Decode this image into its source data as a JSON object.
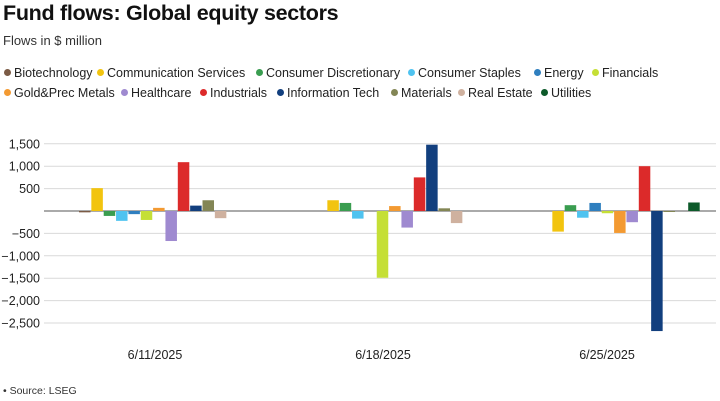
{
  "title": "Fund flows: Global equity sectors",
  "subtitle": "Flows in $ million",
  "source": "• Source: LSEG",
  "chart_data": {
    "type": "bar",
    "categories": [
      "6/11/2025",
      "6/18/2025",
      "6/25/2025"
    ],
    "ylim": [
      -2750,
      1550
    ],
    "yticks": [
      1500,
      1000,
      500,
      -500,
      -1000,
      -1500,
      -2000,
      -2500
    ],
    "ytick_labels": [
      "1,500",
      "1,000",
      "500",
      "−500",
      "−1,000",
      "−1,500",
      "−2,000",
      "−2,500"
    ],
    "grid": true,
    "legend_position": "top",
    "series": [
      {
        "name": "Biotechnology",
        "color": "#7b5b45",
        "values": [
          -30,
          0,
          0
        ]
      },
      {
        "name": "Communication Services",
        "color": "#f2c40f",
        "values": [
          510,
          240,
          -460
        ]
      },
      {
        "name": "Consumer Discretionary",
        "color": "#3a9d50",
        "values": [
          -110,
          180,
          130
        ]
      },
      {
        "name": "Consumer Staples",
        "color": "#4fc3f0",
        "values": [
          -220,
          -170,
          -150
        ]
      },
      {
        "name": "Energy",
        "color": "#2f7fbf",
        "values": [
          -70,
          0,
          180
        ]
      },
      {
        "name": "Financials",
        "color": "#c5df36",
        "values": [
          -200,
          -1490,
          -50
        ]
      },
      {
        "name": "Gold&Prec Metals",
        "color": "#f39a32",
        "values": [
          70,
          110,
          -490
        ]
      },
      {
        "name": "Healthcare",
        "color": "#9f8ad0",
        "values": [
          -670,
          -370,
          -250
        ]
      },
      {
        "name": "Industrials",
        "color": "#dc2a2a",
        "values": [
          1090,
          750,
          1000
        ]
      },
      {
        "name": "Information Tech",
        "color": "#123f7e",
        "values": [
          120,
          1480,
          -2680
        ]
      },
      {
        "name": "Materials",
        "color": "#838655",
        "values": [
          240,
          60,
          -20
        ]
      },
      {
        "name": "Real Estate",
        "color": "#cfb19f",
        "values": [
          -160,
          -270,
          0
        ]
      },
      {
        "name": "Utilities",
        "color": "#0d5a2a",
        "values": [
          0,
          0,
          190
        ]
      }
    ]
  }
}
